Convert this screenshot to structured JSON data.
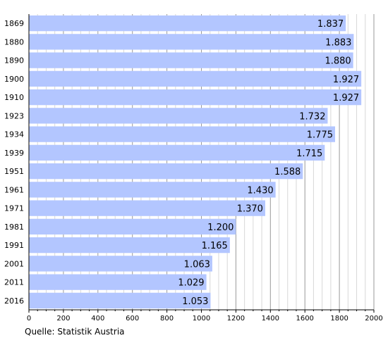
{
  "chart_data": {
    "type": "bar",
    "orientation": "horizontal",
    "categories": [
      "1869",
      "1880",
      "1890",
      "1900",
      "1910",
      "1923",
      "1934",
      "1939",
      "1951",
      "1961",
      "1971",
      "1981",
      "1991",
      "2001",
      "2011",
      "2016"
    ],
    "values": [
      1837,
      1883,
      1880,
      1927,
      1927,
      1732,
      1775,
      1715,
      1588,
      1430,
      1370,
      1200,
      1165,
      1063,
      1029,
      1053
    ],
    "value_labels": [
      "1.837",
      "1.883",
      "1.880",
      "1.927",
      "1.927",
      "1.732",
      "1.775",
      "1.715",
      "1.588",
      "1.430",
      "1.370",
      "1.200",
      "1.165",
      "1.063",
      "1.029",
      "1.053"
    ],
    "xticks": [
      "0",
      "200",
      "400",
      "600",
      "800",
      "1000",
      "1200",
      "1400",
      "1600",
      "1800",
      "2000"
    ],
    "xlim": [
      0,
      2000
    ],
    "grid": "vertical",
    "bar_color": "#b3c6ff",
    "axis_color": "#000000",
    "grid_color": "#b0b0b0",
    "source": "Quelle: Statistik Austria"
  }
}
